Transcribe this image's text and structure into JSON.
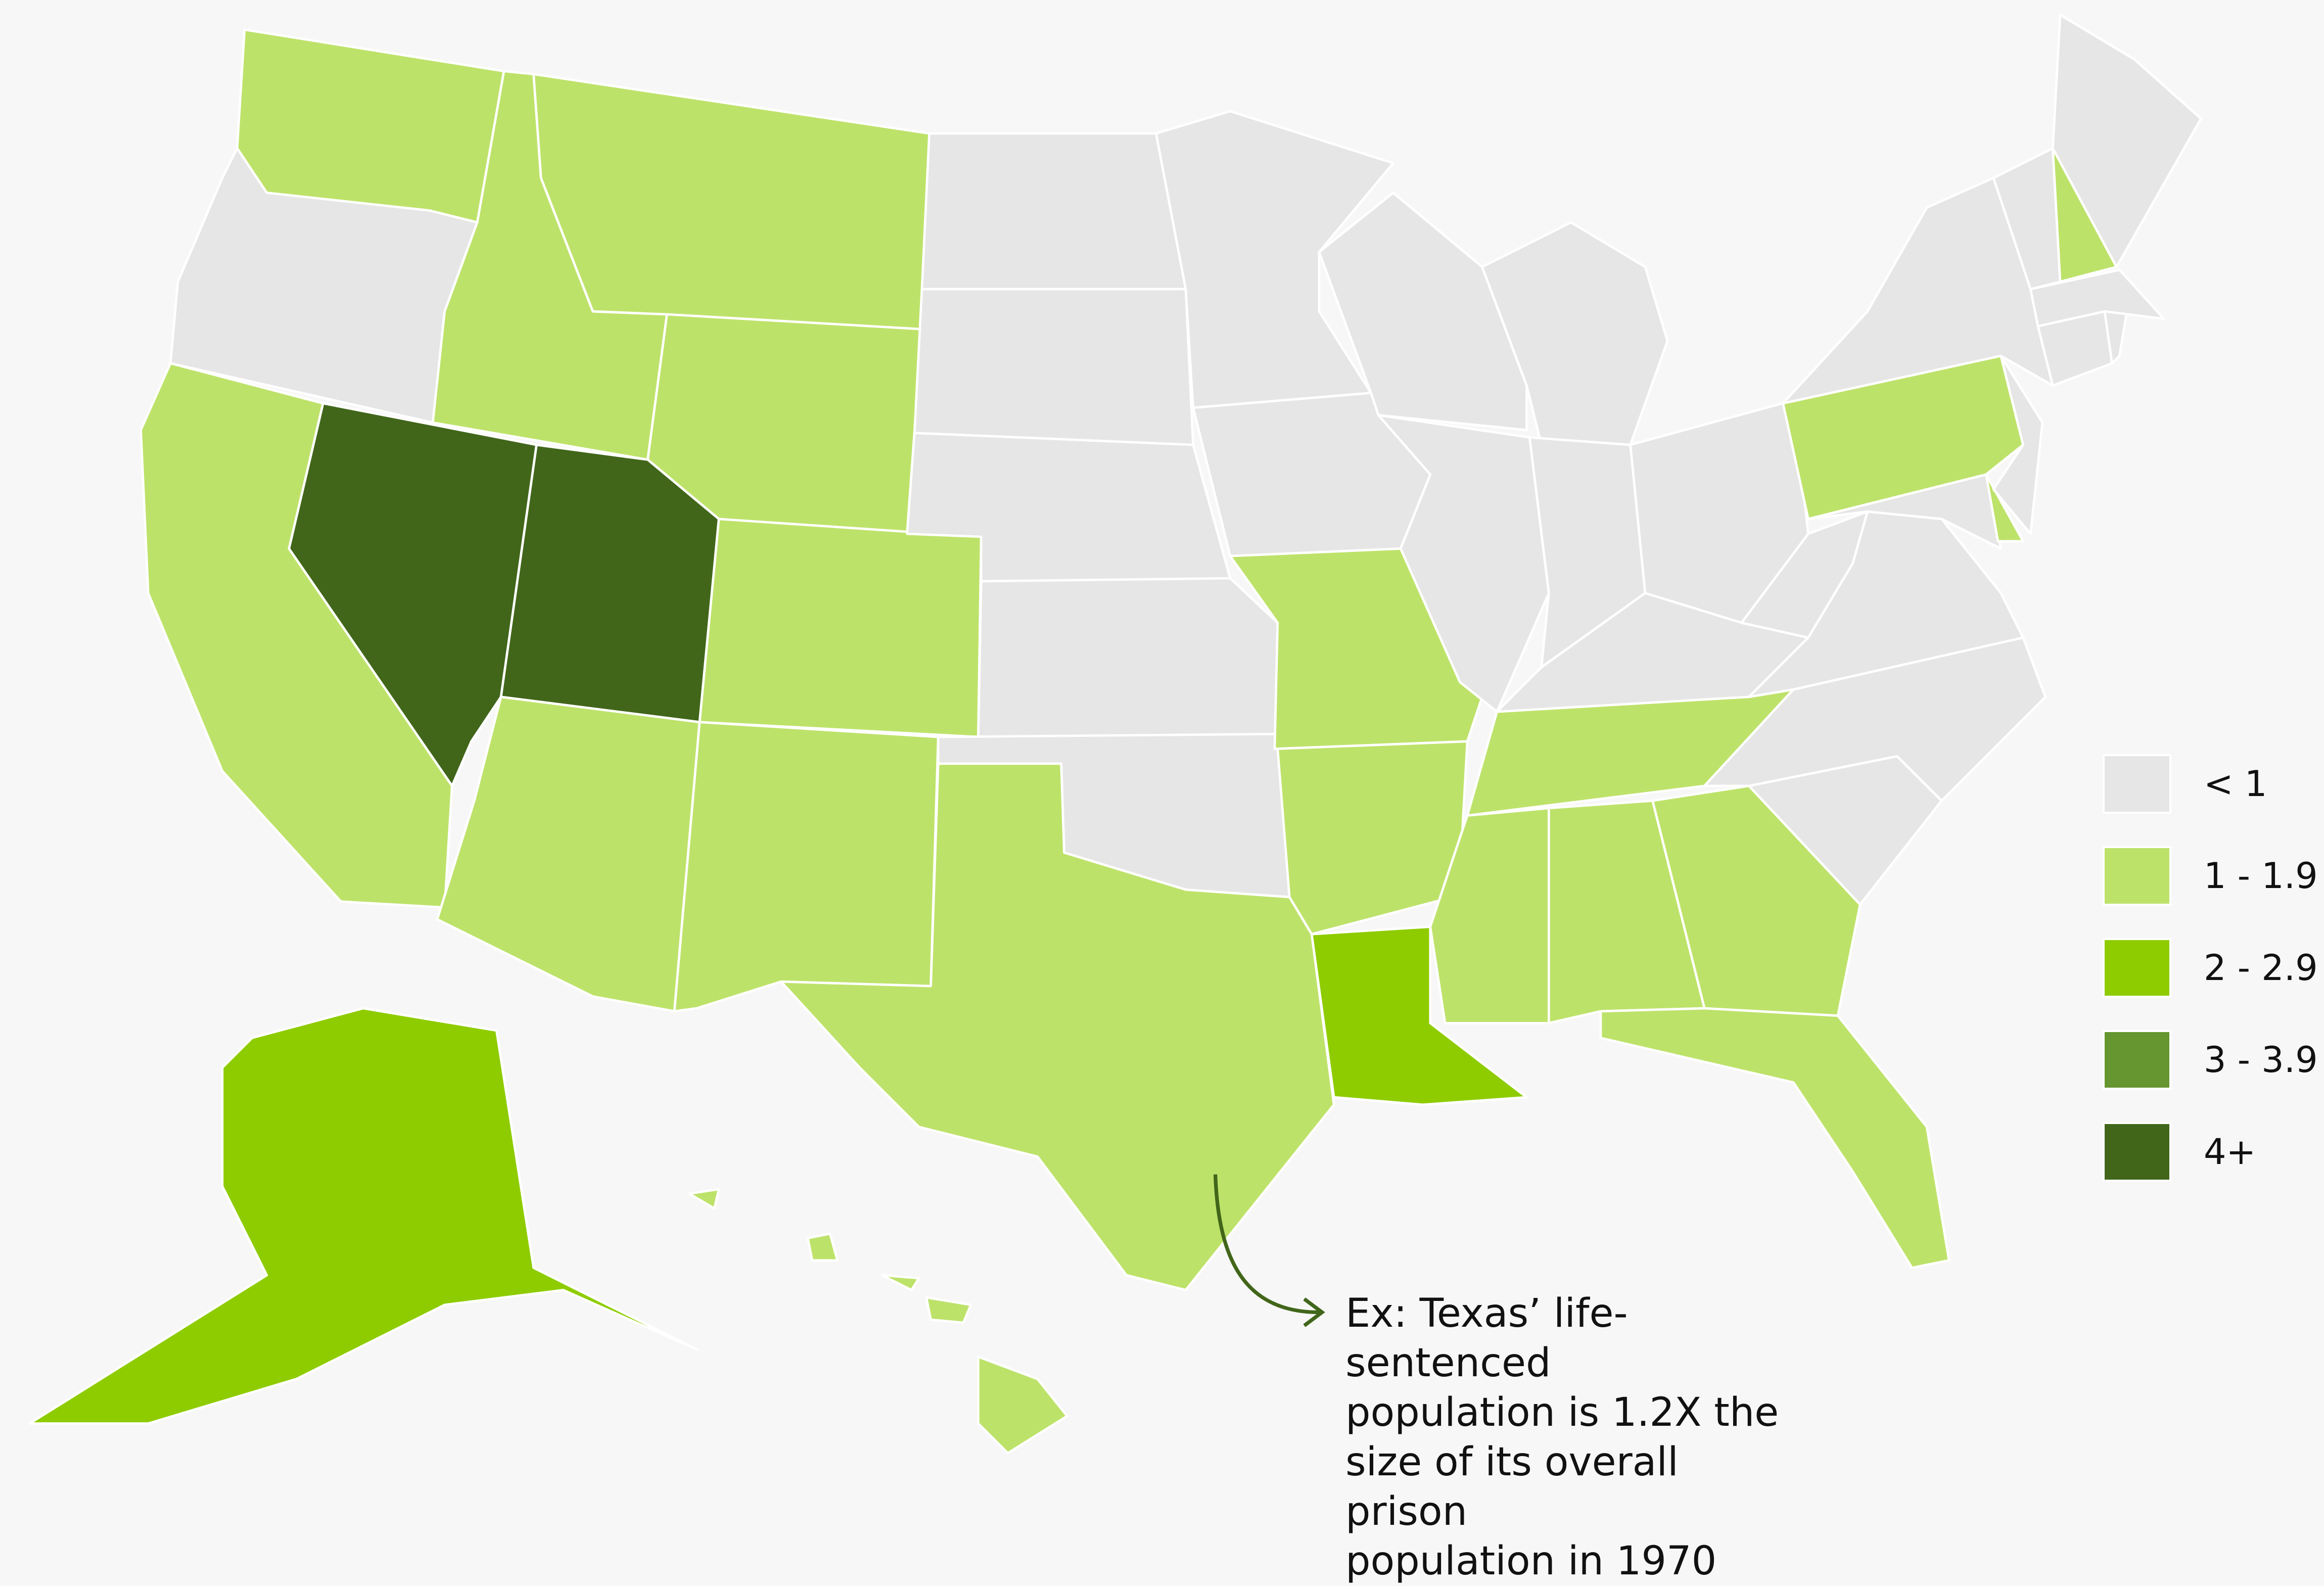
{
  "legend": {
    "items": [
      {
        "label": "< 1",
        "color": "#e6e6e6"
      },
      {
        "label": "1 - 1.9",
        "color": "#bde26a"
      },
      {
        "label": "2 - 2.9",
        "color": "#8ecc00"
      },
      {
        "label": "3 - 3.9",
        "color": "#66962f"
      },
      {
        "label": "4+",
        "color": "#41661a"
      }
    ]
  },
  "annotation": {
    "lines": [
      "Ex: Texas’ life-sentenced",
      "population is 1.2X the",
      "size of its overall prison",
      "population in 1970"
    ],
    "arrow_color": "#41661a"
  },
  "colors": {
    "background": "#f7f7f7",
    "border": "#ffffff"
  },
  "states": {
    "WA": 1,
    "OR": 0,
    "CA": 1,
    "NV": 4,
    "ID": 1,
    "MT": 1,
    "WY": 1,
    "UT": 4,
    "CO": 1,
    "AZ": 1,
    "NM": 1,
    "ND": 0,
    "SD": 0,
    "NE": 0,
    "KS": 0,
    "OK": 0,
    "TX": 1,
    "MN": 0,
    "IA": 0,
    "MO": 1,
    "AR": 1,
    "LA": 2,
    "WI": 0,
    "IL": 0,
    "MI": 0,
    "IN": 0,
    "OH": 0,
    "KY": 0,
    "TN": 1,
    "MS": 1,
    "AL": 1,
    "GA": 1,
    "FL": 1,
    "SC": 0,
    "NC": 0,
    "VA": 0,
    "WV": 0,
    "MD": 0,
    "DE": 1,
    "PA": 1,
    "NJ": 0,
    "NY": 0,
    "CT": 0,
    "RI": 0,
    "MA": 0,
    "VT": 0,
    "NH": 1,
    "ME": 0,
    "AK": 2,
    "HI": 1
  }
}
